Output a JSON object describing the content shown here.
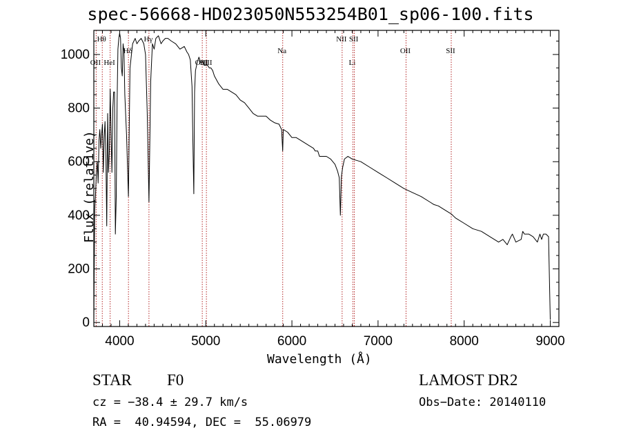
{
  "header": {
    "title": "spec-56668-HD023050N553254B01_sp06-100.fits"
  },
  "info": {
    "object_type": "STAR",
    "subclass": "F0",
    "survey": "LAMOST DR2",
    "cz": "cz = −38.4 ± 29.7 km/s",
    "obs_date": "Obs−Date: 20140110",
    "radec": "RA =  40.94594, DEC =  55.06979"
  },
  "chart_data": {
    "type": "line",
    "title": "spec-56668-HD023050N553254B01_sp06-100.fits",
    "xlabel": "Wavelength (Å)",
    "ylabel": "Flux (relative)",
    "xlim": [
      3700,
      9100
    ],
    "ylim": [
      -15,
      1090
    ],
    "xticks": [
      4000,
      5000,
      6000,
      7000,
      8000,
      9000
    ],
    "yticks": [
      0,
      200,
      400,
      600,
      800,
      1000
    ],
    "grid": false,
    "colors": {
      "spectrum": "#000000",
      "lines": "#b22222"
    },
    "line_marks": [
      {
        "label": "Hθ",
        "wavelength": 3798,
        "level": 1
      },
      {
        "label": "OII",
        "wavelength": 3727,
        "level": 2
      },
      {
        "label": "HeI",
        "wavelength": 3889,
        "level": 2
      },
      {
        "label": "Hδ",
        "wavelength": 4102,
        "level": 3
      },
      {
        "label": "Hγ",
        "wavelength": 4340,
        "level": 1
      },
      {
        "label": "OIII",
        "wavelength": 4959,
        "level": 2
      },
      {
        "label": "OIII",
        "wavelength": 5007,
        "level": 2
      },
      {
        "label": "Na",
        "wavelength": 5893,
        "level": 3
      },
      {
        "label": "NII",
        "wavelength": 6583,
        "level": 1
      },
      {
        "label": "Li",
        "wavelength": 6708,
        "level": 2
      },
      {
        "label": "SII",
        "wavelength": 6725,
        "level": 1
      },
      {
        "label": "OII",
        "wavelength": 7325,
        "level": 3
      },
      {
        "label": "SII",
        "wavelength": 7850,
        "level": 3
      }
    ],
    "series": [
      {
        "x": [
          3700,
          3710,
          3720,
          3730,
          3740,
          3750,
          3760,
          3770,
          3780,
          3790,
          3800,
          3810,
          3820,
          3830,
          3840,
          3850,
          3860,
          3870,
          3880,
          3890,
          3900,
          3910,
          3920,
          3930,
          3940,
          3950,
          3960,
          3970,
          3980,
          3990,
          4000,
          4010,
          4020,
          4030,
          4040,
          4050,
          4060,
          4080,
          4101,
          4120,
          4150,
          4180,
          4200,
          4220,
          4250,
          4280,
          4300,
          4320,
          4340,
          4360,
          4380,
          4400,
          4420,
          4450,
          4480,
          4500,
          4530,
          4560,
          4600,
          4650,
          4700,
          4750,
          4780,
          4800,
          4820,
          4840,
          4850,
          4861,
          4870,
          4880,
          4900,
          4920,
          4940,
          4960,
          4980,
          5000,
          5020,
          5040,
          5060,
          5080,
          5100,
          5150,
          5200,
          5250,
          5300,
          5350,
          5400,
          5450,
          5500,
          5550,
          5600,
          5650,
          5700,
          5750,
          5800,
          5850,
          5880,
          5893,
          5900,
          5950,
          6000,
          6050,
          6100,
          6150,
          6200,
          6250,
          6270,
          6300,
          6320,
          6400,
          6450,
          6500,
          6530,
          6550,
          6563,
          6575,
          6590,
          6610,
          6650,
          6700,
          6750,
          6800,
          6900,
          7000,
          7100,
          7200,
          7300,
          7400,
          7500,
          7600,
          7650,
          7700,
          7750,
          7800,
          7850,
          7900,
          8000,
          8100,
          8200,
          8300,
          8400,
          8450,
          8500,
          8542,
          8560,
          8600,
          8662,
          8680,
          8700,
          8750,
          8800,
          8850,
          8880,
          8900,
          8920,
          8950,
          8980,
          9000
        ],
        "y": [
          10,
          420,
          480,
          560,
          600,
          520,
          680,
          720,
          650,
          700,
          740,
          560,
          690,
          750,
          620,
          360,
          780,
          560,
          640,
          870,
          700,
          560,
          800,
          860,
          860,
          330,
          470,
          820,
          1020,
          1060,
          1080,
          1060,
          950,
          920,
          1040,
          1010,
          850,
          700,
          470,
          950,
          1040,
          1060,
          1040,
          1050,
          1060,
          1040,
          1000,
          780,
          450,
          900,
          1040,
          1020,
          1060,
          1070,
          1040,
          1050,
          1060,
          1060,
          1050,
          1040,
          1020,
          1030,
          1010,
          1000,
          980,
          880,
          680,
          480,
          860,
          940,
          970,
          990,
          970,
          975,
          960,
          960,
          960,
          950,
          950,
          940,
          920,
          890,
          870,
          870,
          860,
          850,
          830,
          820,
          800,
          780,
          770,
          770,
          770,
          755,
          745,
          740,
          720,
          640,
          720,
          710,
          690,
          690,
          680,
          670,
          660,
          650,
          640,
          640,
          620,
          620,
          610,
          590,
          565,
          540,
          400,
          545,
          580,
          610,
          620,
          610,
          605,
          600,
          580,
          560,
          540,
          520,
          500,
          485,
          470,
          450,
          440,
          435,
          425,
          415,
          405,
          390,
          370,
          350,
          340,
          320,
          300,
          310,
          290,
          320,
          330,
          300,
          310,
          340,
          330,
          330,
          320,
          300,
          330,
          310,
          330,
          330,
          320,
          10
        ]
      }
    ]
  }
}
